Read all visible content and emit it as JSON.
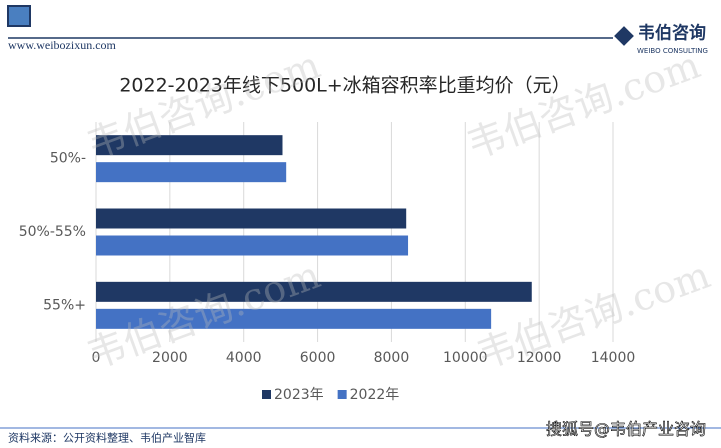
{
  "header": {
    "site": "www.weibozixun.com",
    "logo_name": "韦伯咨询",
    "logo_sub": "WEIBO CONSULTING"
  },
  "watermark": "韦伯咨询.com",
  "footer": {
    "source": "资料来源：公开资料整理、韦伯产业智库",
    "platform": "搜狐号@韦伯产业咨询"
  },
  "chart_data": {
    "type": "hbar",
    "title": "2022-2023年线下500L+冰箱容积率比重均价（元）",
    "categories": [
      "50%-",
      "50%-55%",
      "55%+"
    ],
    "series": [
      {
        "name": "2023年",
        "color": "#1f3864",
        "values": [
          5050,
          8400,
          11800
        ]
      },
      {
        "name": "2022年",
        "color": "#4472c4",
        "values": [
          5150,
          8450,
          10700
        ]
      }
    ],
    "xlim": [
      0,
      14000
    ],
    "xticks": [
      0,
      2000,
      4000,
      6000,
      8000,
      10000,
      12000,
      14000
    ],
    "grid": true,
    "legend": "bottom"
  }
}
